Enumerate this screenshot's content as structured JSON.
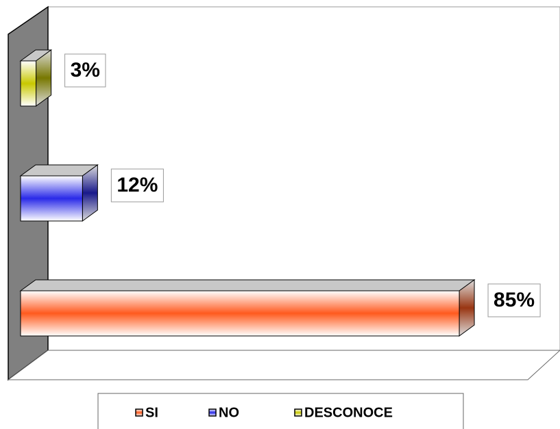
{
  "chart_data": {
    "type": "bar",
    "orientation": "horizontal",
    "series": [
      {
        "name": "SI",
        "color": "#ff5a1e",
        "values": [
          85
        ],
        "value_labels": [
          "85%"
        ]
      },
      {
        "name": "NO",
        "color": "#2a2ae8",
        "values": [
          12
        ],
        "value_labels": [
          "12%"
        ]
      },
      {
        "name": "DESCONOCE",
        "color": "#c8c800",
        "values": [
          3
        ],
        "value_labels": [
          "3%"
        ]
      }
    ],
    "legend": "bottom"
  }
}
